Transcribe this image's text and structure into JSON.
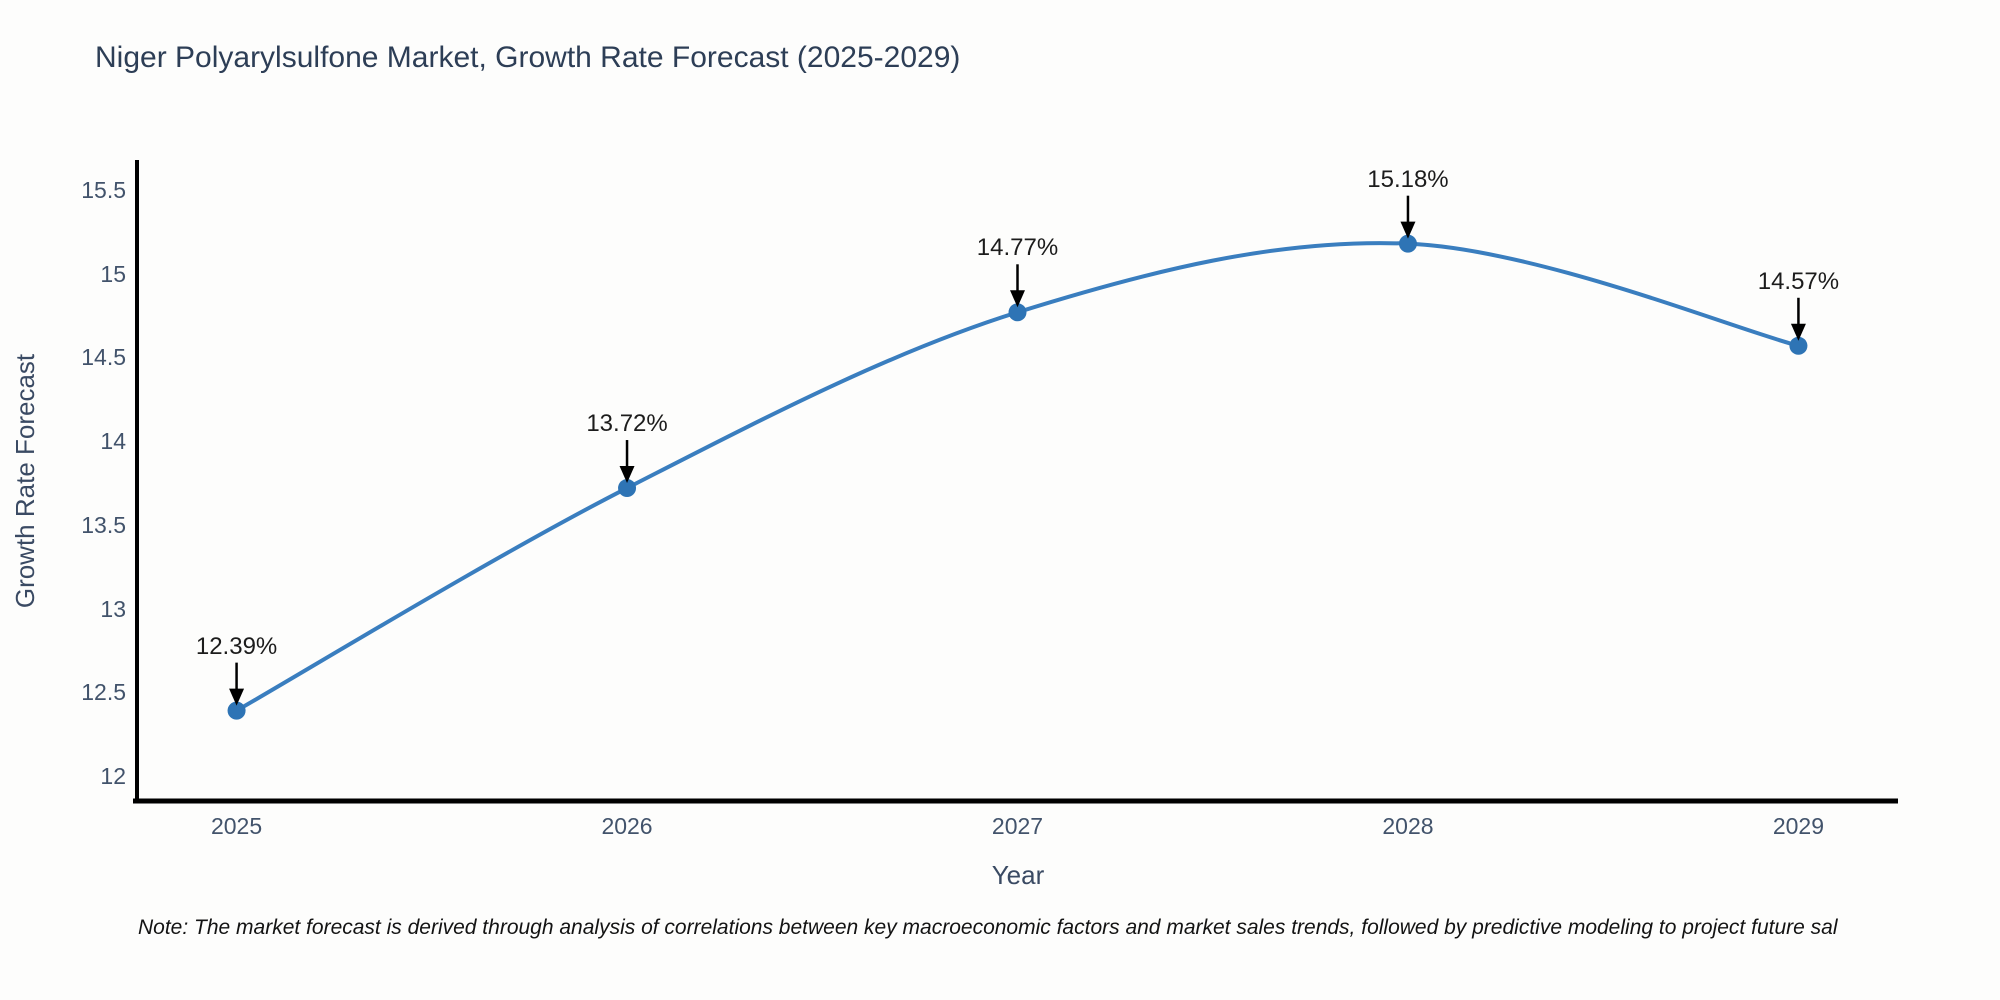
{
  "title": "Niger Polyarylsulfone Market, Growth Rate Forecast (2025-2029)",
  "note": "Note: The market forecast is derived through analysis of correlations between key macroeconomic factors and market sales trends, followed by predictive modeling to project future sal",
  "colors": {
    "line": "#3a7ebf",
    "marker": "#2e74b5",
    "axis": "#000000",
    "tick_text": "#42536b",
    "title_text": "#2d3e56",
    "annotation_text": "#1c1c1c"
  },
  "chart_data": {
    "type": "line",
    "line_shape": "spline",
    "title": "Niger Polyarylsulfone Market, Growth Rate Forecast (2025-2029)",
    "xlabel": "Year",
    "ylabel": "Growth Rate Forecast",
    "x": [
      2025,
      2026,
      2027,
      2028,
      2029
    ],
    "series": [
      {
        "name": "Growth Rate Forecast",
        "values": [
          12.39,
          13.72,
          14.77,
          15.18,
          14.57
        ]
      }
    ],
    "annotations": [
      "12.39%",
      "13.72%",
      "14.77%",
      "15.18%",
      "14.57%"
    ],
    "xticks": [
      "2025",
      "2026",
      "2027",
      "2028",
      "2029"
    ],
    "yticks": [
      12,
      12.5,
      13,
      13.5,
      14,
      14.5,
      15,
      15.5
    ],
    "xlim": [
      2024.745,
      2029.255
    ],
    "ylim": [
      11.85,
      15.68
    ],
    "grid": false,
    "legend": "none"
  }
}
